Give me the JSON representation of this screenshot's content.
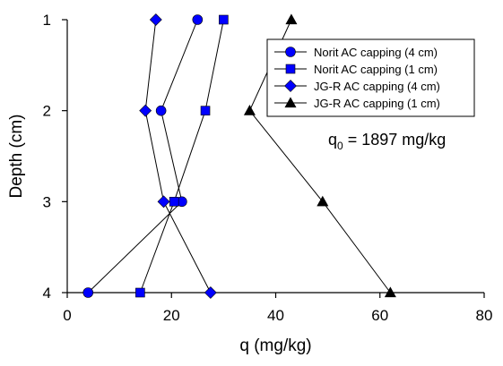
{
  "chart_data": {
    "type": "line",
    "xlabel": "q (mg/kg)",
    "ylabel": "Depth (cm)",
    "xlim": [
      0,
      80
    ],
    "ylim": [
      1,
      4
    ],
    "y_inverted": true,
    "xticks": [
      0,
      20,
      40,
      60,
      80
    ],
    "yticks": [
      1,
      2,
      3,
      4
    ],
    "grid": false,
    "legend_placement": "top-right",
    "annotation": {
      "base": "q",
      "subscript": "0",
      "rest": " = 1897 mg/kg"
    },
    "series": [
      {
        "name": "Norit AC capping (4 cm)",
        "marker": "circle",
        "color": "#0000ff",
        "points": [
          {
            "x": 25,
            "y": 1
          },
          {
            "x": 18,
            "y": 2
          },
          {
            "x": 22,
            "y": 3
          },
          {
            "x": 4,
            "y": 4
          }
        ]
      },
      {
        "name": "Norit AC capping (1 cm)",
        "marker": "square",
        "color": "#0000ff",
        "points": [
          {
            "x": 30,
            "y": 1
          },
          {
            "x": 26.5,
            "y": 2
          },
          {
            "x": 20.5,
            "y": 3
          },
          {
            "x": 14,
            "y": 4
          }
        ]
      },
      {
        "name": "JG-R AC capping (4 cm)",
        "marker": "diamond",
        "color": "#0000ff",
        "points": [
          {
            "x": 17,
            "y": 1
          },
          {
            "x": 15,
            "y": 2
          },
          {
            "x": 18.5,
            "y": 3
          },
          {
            "x": 27.5,
            "y": 4
          }
        ]
      },
      {
        "name": "JG-R AC capping (1 cm)",
        "marker": "triangle",
        "color": "#000000",
        "points": [
          {
            "x": 43,
            "y": 1
          },
          {
            "x": 35,
            "y": 2
          },
          {
            "x": 49,
            "y": 3
          },
          {
            "x": 62,
            "y": 4
          }
        ]
      }
    ]
  }
}
